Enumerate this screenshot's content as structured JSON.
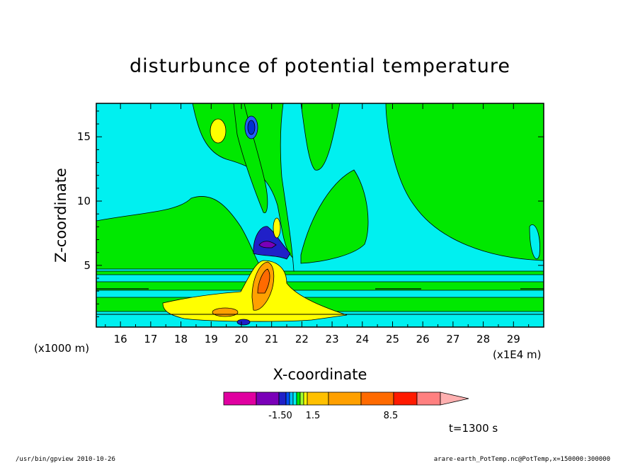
{
  "chart_data": {
    "type": "heatmap",
    "title": "disturbunce of potential temperature",
    "xlabel": "X-coordinate",
    "ylabel": "Z-coordinate",
    "x_unit_label": "(x1E4 m)",
    "y_unit_label": "(x1000 m)",
    "xlim": [
      15.2,
      30.0
    ],
    "ylim": [
      0.2,
      17.6
    ],
    "x_ticks": [
      "16",
      "17",
      "18",
      "19",
      "20",
      "21",
      "22",
      "23",
      "24",
      "25",
      "26",
      "27",
      "28",
      "29"
    ],
    "y_ticks": [
      "5",
      "10",
      "15"
    ],
    "colorbar": {
      "colors": [
        "#e000a0",
        "#7a00b8",
        "#2020c8",
        "#0050ff",
        "#00c0ff",
        "#00f0f0",
        "#00e800",
        "#a0ff30",
        "#ffff00",
        "#ffc000",
        "#ffa000",
        "#ff6a00",
        "#ff1a00",
        "#ff8080",
        "#ffb0b0"
      ],
      "labels": [
        "-1.50",
        "1.5",
        "8.5"
      ]
    },
    "time_label": "t=1300 s",
    "footer_left": "/usr/bin/gpview   2010-10-26",
    "footer_right": "arare-earth_PotTemp.nc@PotTemp,x=150000:300000"
  }
}
